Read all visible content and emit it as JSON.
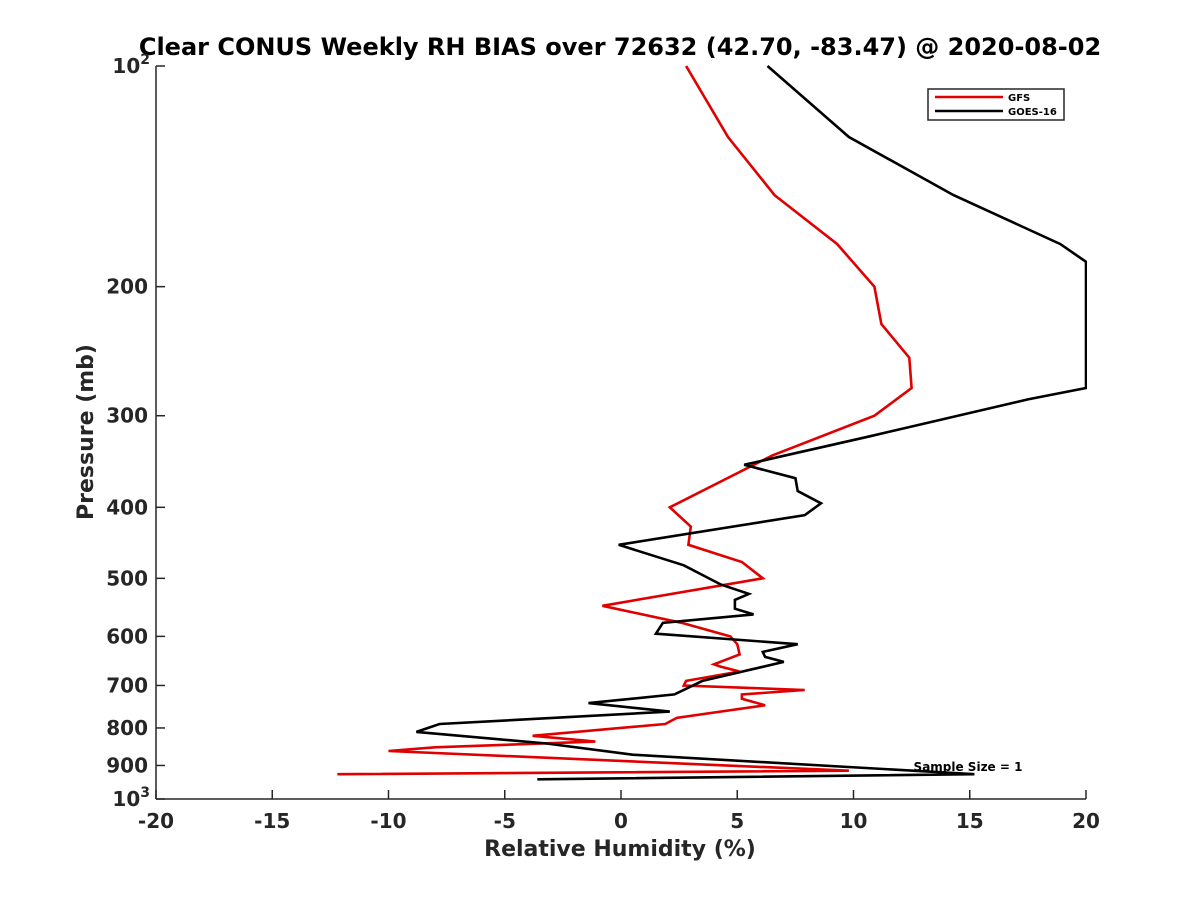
{
  "chart_data": {
    "type": "line",
    "title": "Clear CONUS Weekly RH BIAS over 72632 (42.70, -83.47) @ 2020-08-02",
    "xlabel": "Relative Humidity (%)",
    "ylabel": "Pressure (mb)",
    "xlim": [
      -20,
      20
    ],
    "ylim": [
      100,
      1000
    ],
    "yscale": "log",
    "y_reversed": true,
    "grid": false,
    "legend_position": "top-right",
    "x_ticks": [
      "-20",
      "-15",
      "-10",
      "-5",
      "0",
      "5",
      "10",
      "15",
      "20"
    ],
    "y_ticks": [
      {
        "value": 100,
        "base": "10",
        "exp": "2"
      },
      {
        "value": 200,
        "label": "200"
      },
      {
        "value": 300,
        "label": "300"
      },
      {
        "value": 400,
        "label": "400"
      },
      {
        "value": 500,
        "label": "500"
      },
      {
        "value": 600,
        "label": "600"
      },
      {
        "value": 700,
        "label": "700"
      },
      {
        "value": 800,
        "label": "800"
      },
      {
        "value": 900,
        "label": "900"
      },
      {
        "value": 1000,
        "base": "10",
        "exp": "3"
      }
    ],
    "annotation": "Sample Size = 1",
    "series": [
      {
        "name": "GFS",
        "color": "#e00000",
        "points": [
          [
            2.8,
            100
          ],
          [
            4.6,
            125
          ],
          [
            6.6,
            150
          ],
          [
            9.3,
            175
          ],
          [
            10.9,
            200
          ],
          [
            11.2,
            225
          ],
          [
            12.4,
            250
          ],
          [
            12.5,
            275
          ],
          [
            10.9,
            300
          ],
          [
            6.5,
            340
          ],
          [
            2.1,
            400
          ],
          [
            3.0,
            425
          ],
          [
            2.9,
            450
          ],
          [
            5.2,
            475
          ],
          [
            6.1,
            500
          ],
          [
            -0.8,
            545
          ],
          [
            2.6,
            575
          ],
          [
            4.7,
            600
          ],
          [
            5.0,
            615
          ],
          [
            5.1,
            635
          ],
          [
            4.0,
            655
          ],
          [
            4.3,
            660
          ],
          [
            5.1,
            670
          ],
          [
            2.8,
            690
          ],
          [
            2.7,
            700
          ],
          [
            7.9,
            710
          ],
          [
            5.2,
            720
          ],
          [
            5.2,
            730
          ],
          [
            6.2,
            745
          ],
          [
            2.4,
            775
          ],
          [
            1.9,
            790
          ],
          [
            -3.8,
            820
          ],
          [
            -1.1,
            835
          ],
          [
            -8.0,
            850
          ],
          [
            -10.0,
            860
          ],
          [
            9.8,
            915
          ],
          [
            -12.2,
            925
          ]
        ]
      },
      {
        "name": "GOES-16",
        "color": "#000000",
        "points": [
          [
            6.3,
            100
          ],
          [
            9.8,
            125
          ],
          [
            14.3,
            150
          ],
          [
            18.9,
            175
          ],
          [
            20.0,
            185
          ],
          [
            20.0,
            275
          ],
          [
            17.5,
            285
          ],
          [
            10.7,
            320
          ],
          [
            5.3,
            350
          ],
          [
            7.5,
            365
          ],
          [
            7.6,
            380
          ],
          [
            8.6,
            395
          ],
          [
            7.9,
            410
          ],
          [
            -0.1,
            450
          ],
          [
            2.7,
            480
          ],
          [
            4.3,
            510
          ],
          [
            5.5,
            525
          ],
          [
            4.9,
            535
          ],
          [
            4.9,
            550
          ],
          [
            5.7,
            560
          ],
          [
            1.8,
            575
          ],
          [
            1.5,
            595
          ],
          [
            7.6,
            615
          ],
          [
            6.1,
            630
          ],
          [
            6.2,
            640
          ],
          [
            7.0,
            650
          ],
          [
            3.5,
            690
          ],
          [
            2.3,
            720
          ],
          [
            -1.4,
            740
          ],
          [
            2.1,
            760
          ],
          [
            -7.8,
            790
          ],
          [
            -8.8,
            810
          ],
          [
            -3.2,
            840
          ],
          [
            0.5,
            870
          ],
          [
            15.2,
            925
          ],
          [
            -3.6,
            940
          ]
        ]
      }
    ]
  }
}
